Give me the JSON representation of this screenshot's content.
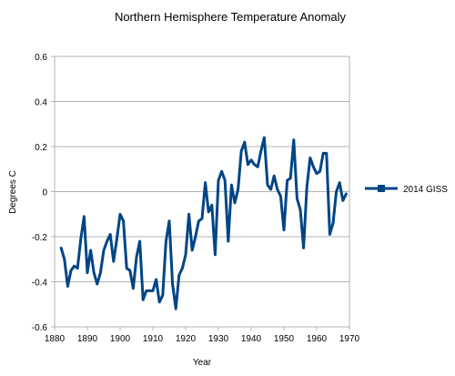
{
  "chart_data": {
    "type": "line",
    "title": "Northern Hemisphere Temperature Anomaly",
    "xlabel": "Year",
    "ylabel": "Degrees C",
    "xlim": [
      1880,
      1970
    ],
    "ylim": [
      -0.6,
      0.6
    ],
    "x_ticks": [
      1880,
      1890,
      1900,
      1910,
      1920,
      1930,
      1940,
      1950,
      1960,
      1970
    ],
    "y_ticks": [
      -0.6,
      -0.4,
      -0.2,
      0,
      0.2,
      0.4,
      0.6
    ],
    "x_tick_labels": [
      "1880",
      "1890",
      "1900",
      "1910",
      "1920",
      "1930",
      "1940",
      "1950",
      "1960",
      "1970"
    ],
    "y_tick_labels": [
      "-0.6",
      "-0.4",
      "-0.2",
      "0",
      "0.2",
      "0.4",
      "0.6"
    ],
    "grid": true,
    "legend_position": "right",
    "series": [
      {
        "name": "2014 GISS",
        "color": "#004586",
        "marker": "square",
        "x": [
          1882,
          1883,
          1884,
          1885,
          1886,
          1887,
          1888,
          1889,
          1890,
          1891,
          1892,
          1893,
          1894,
          1895,
          1896,
          1897,
          1898,
          1899,
          1900,
          1901,
          1902,
          1903,
          1904,
          1905,
          1906,
          1907,
          1908,
          1909,
          1910,
          1911,
          1912,
          1913,
          1914,
          1915,
          1916,
          1917,
          1918,
          1919,
          1920,
          1921,
          1922,
          1923,
          1924,
          1925,
          1926,
          1927,
          1928,
          1929,
          1930,
          1931,
          1932,
          1933,
          1934,
          1935,
          1936,
          1937,
          1938,
          1939,
          1940,
          1941,
          1942,
          1943,
          1944,
          1945,
          1946,
          1947,
          1948,
          1949,
          1950,
          1951,
          1952,
          1953,
          1954,
          1955,
          1956,
          1957,
          1958,
          1959,
          1960,
          1961,
          1962,
          1963,
          1964,
          1965,
          1966,
          1967,
          1968,
          1969
        ],
        "y": [
          -0.25,
          -0.3,
          -0.42,
          -0.35,
          -0.33,
          -0.34,
          -0.21,
          -0.11,
          -0.36,
          -0.26,
          -0.36,
          -0.41,
          -0.36,
          -0.26,
          -0.22,
          -0.19,
          -0.31,
          -0.21,
          -0.1,
          -0.13,
          -0.34,
          -0.35,
          -0.43,
          -0.29,
          -0.22,
          -0.48,
          -0.44,
          -0.44,
          -0.44,
          -0.39,
          -0.49,
          -0.46,
          -0.22,
          -0.13,
          -0.41,
          -0.52,
          -0.37,
          -0.34,
          -0.28,
          -0.1,
          -0.26,
          -0.2,
          -0.13,
          -0.12,
          0.04,
          -0.09,
          -0.06,
          -0.28,
          0.05,
          0.09,
          0.05,
          -0.22,
          0.03,
          -0.05,
          0.01,
          0.18,
          0.22,
          0.12,
          0.14,
          0.12,
          0.11,
          0.18,
          0.24,
          0.03,
          0.01,
          0.07,
          0.01,
          -0.02,
          -0.17,
          0.05,
          0.06,
          0.23,
          -0.03,
          -0.08,
          -0.25,
          0.02,
          0.15,
          0.11,
          0.08,
          0.09,
          0.17,
          0.17,
          -0.19,
          -0.14,
          0.0,
          0.04,
          -0.04,
          -0.01
        ]
      }
    ]
  }
}
